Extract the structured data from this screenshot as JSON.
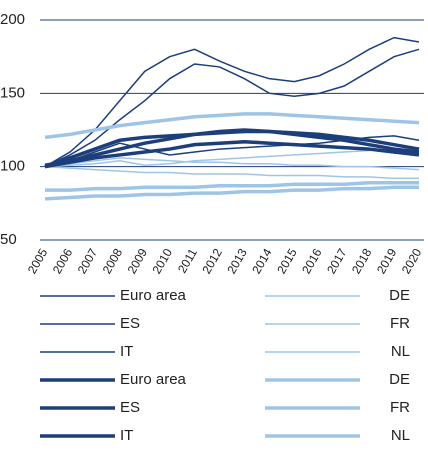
{
  "chart_data": {
    "type": "line",
    "categories": [
      "2005",
      "2006",
      "2007",
      "2008",
      "2009",
      "2010",
      "2011",
      "2012",
      "2013",
      "2014",
      "2015",
      "2016",
      "2017",
      "2018",
      "2019",
      "2020"
    ],
    "ylim": [
      50,
      200
    ],
    "yticks": [
      50,
      100,
      150,
      200
    ],
    "grid": true,
    "series": [
      {
        "name": "Euro area",
        "color": "#1c3f7c",
        "width": 1.5,
        "values": [
          100,
          104,
          110,
          116,
          112,
          108,
          110,
          112,
          113,
          114,
          115,
          116,
          118,
          120,
          121,
          118
        ]
      },
      {
        "name": "DE",
        "color": "#9ec5e6",
        "width": 1.5,
        "values": [
          100,
          101,
          102,
          104,
          101,
          102,
          104,
          105,
          106,
          107,
          108,
          109,
          110,
          111,
          112,
          110
        ]
      },
      {
        "name": "ES",
        "color": "#1c3f7c",
        "width": 1.5,
        "values": [
          100,
          110,
          125,
          145,
          165,
          175,
          180,
          172,
          165,
          160,
          158,
          162,
          170,
          180,
          188,
          185
        ]
      },
      {
        "name": "FR",
        "color": "#9ec5e6",
        "width": 1.5,
        "values": [
          100,
          102,
          104,
          106,
          105,
          104,
          103,
          103,
          102,
          102,
          101,
          101,
          100,
          100,
          99,
          98
        ]
      },
      {
        "name": "IT",
        "color": "#1c3f7c",
        "width": 1.5,
        "values": [
          100,
          108,
          118,
          132,
          145,
          160,
          170,
          168,
          160,
          150,
          148,
          150,
          155,
          165,
          175,
          180
        ]
      },
      {
        "name": "NL",
        "color": "#9ec5e6",
        "width": 1.5,
        "values": [
          100,
          99,
          98,
          97,
          96,
          96,
          95,
          95,
          95,
          94,
          94,
          94,
          93,
          93,
          92,
          92
        ]
      },
      {
        "name": "Euro area",
        "color": "#1c3f7c",
        "width": 3.5,
        "values": [
          100,
          103,
          106,
          108,
          110,
          112,
          115,
          116,
          117,
          116,
          115,
          114,
          113,
          112,
          110,
          108
        ]
      },
      {
        "name": "DE",
        "color": "#9ec5e6",
        "width": 3.5,
        "values": [
          78,
          79,
          80,
          80,
          81,
          81,
          82,
          82,
          83,
          83,
          84,
          84,
          85,
          85,
          86,
          86
        ]
      },
      {
        "name": "ES",
        "color": "#1c3f7c",
        "width": 3.5,
        "values": [
          100,
          106,
          112,
          118,
          120,
          121,
          122,
          123,
          124,
          124,
          123,
          122,
          120,
          118,
          115,
          112
        ]
      },
      {
        "name": "FR",
        "color": "#9ec5e6",
        "width": 3.5,
        "values": [
          84,
          84,
          85,
          85,
          86,
          86,
          86,
          87,
          87,
          87,
          88,
          88,
          88,
          89,
          89,
          89
        ]
      },
      {
        "name": "IT",
        "color": "#1c3f7c",
        "width": 3.5,
        "values": [
          101,
          104,
          108,
          112,
          116,
          119,
          122,
          124,
          125,
          124,
          122,
          120,
          118,
          115,
          112,
          110
        ]
      },
      {
        "name": "NL",
        "color": "#9ec5e6",
        "width": 3.5,
        "values": [
          120,
          122,
          125,
          128,
          130,
          132,
          134,
          135,
          136,
          136,
          135,
          134,
          133,
          132,
          131,
          130
        ]
      }
    ]
  }
}
